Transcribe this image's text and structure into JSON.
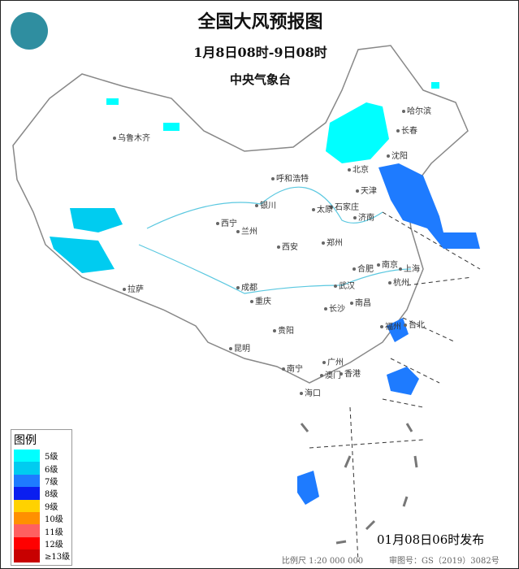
{
  "header": {
    "title": "全国大风预报图",
    "period": "1月8日08时-9日08时",
    "issuer": "中央气象台"
  },
  "logo": {
    "icon": "cma-logo"
  },
  "colors": {
    "level5": "#00ffff",
    "level6": "#00ccf0",
    "level7": "#1e7bff",
    "level8": "#0a1ef0",
    "level9": "#ffd200",
    "level10": "#ff9000",
    "level11": "#ff6060",
    "level12": "#ff0000",
    "level13": "#c80000"
  },
  "legend": {
    "title": "图例",
    "items": [
      {
        "label": "5级",
        "color": "#00ffff"
      },
      {
        "label": "6级",
        "color": "#00ccf0"
      },
      {
        "label": "7级",
        "color": "#1e7bff"
      },
      {
        "label": "8级",
        "color": "#0a1ef0"
      },
      {
        "label": "9级",
        "color": "#ffd200"
      },
      {
        "label": "10级",
        "color": "#ff9000"
      },
      {
        "label": "11级",
        "color": "#ff6060"
      },
      {
        "label": "12级",
        "color": "#ff0000"
      },
      {
        "label": "≥13级",
        "color": "#c80000"
      }
    ]
  },
  "cities": [
    "乌鲁木齐",
    "哈尔滨",
    "长春",
    "沈阳",
    "北京",
    "天津",
    "呼和浩特",
    "石家庄",
    "济南",
    "太原",
    "银川",
    "西宁",
    "兰州",
    "郑州",
    "西安",
    "合肥",
    "南京",
    "上海",
    "杭州",
    "武汉",
    "成都",
    "重庆",
    "长沙",
    "南昌",
    "拉萨",
    "贵阳",
    "福州",
    "台北",
    "昆明",
    "南宁",
    "广州",
    "澳门",
    "香港",
    "海口"
  ],
  "footer": {
    "issued": "01月08日06时发布",
    "scale": "比例尺 1:20 000 000",
    "review": "审图号：GS（2019）3082号"
  }
}
